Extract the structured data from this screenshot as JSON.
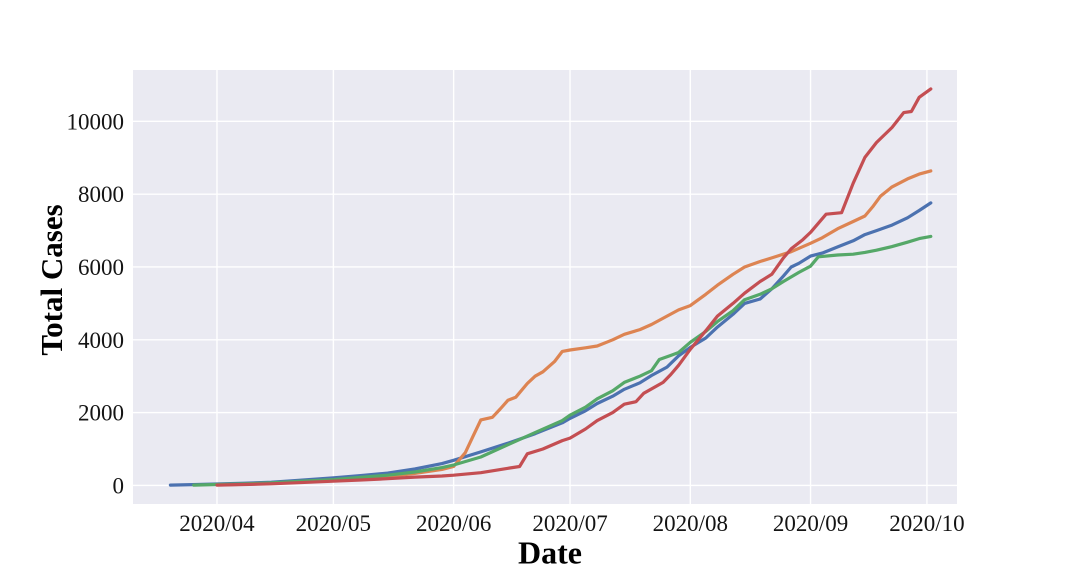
{
  "chart_data": {
    "type": "line",
    "title": "",
    "xlabel": "Date",
    "ylabel": "Total Cases",
    "grid": true,
    "legend": "none",
    "plot_background": "#EAEAF2",
    "grid_color": "#FFFFFF",
    "text_color": "#141414",
    "x_epoch_day0": "2020/03/20",
    "xlim_days": [
      -9.65,
      202.75
    ],
    "ylim": [
      -510,
      11410
    ],
    "x_ticks": [
      {
        "day": 12,
        "label": "2020/04"
      },
      {
        "day": 42,
        "label": "2020/05"
      },
      {
        "day": 73,
        "label": "2020/06"
      },
      {
        "day": 103,
        "label": "2020/07"
      },
      {
        "day": 134,
        "label": "2020/08"
      },
      {
        "day": 165,
        "label": "2020/09"
      },
      {
        "day": 195,
        "label": "2020/10"
      }
    ],
    "y_ticks": [
      {
        "value": 0,
        "label": "0"
      },
      {
        "value": 2000,
        "label": "2000"
      },
      {
        "value": 4000,
        "label": "4000"
      },
      {
        "value": 6000,
        "label": "6000"
      },
      {
        "value": 8000,
        "label": "8000"
      },
      {
        "value": 10000,
        "label": "10000"
      }
    ],
    "series": [
      {
        "name": "blue",
        "color": "#4C72B0",
        "points": [
          [
            0,
            10
          ],
          [
            7,
            25
          ],
          [
            12,
            40
          ],
          [
            19,
            60
          ],
          [
            26,
            90
          ],
          [
            33,
            140
          ],
          [
            42,
            210
          ],
          [
            49,
            270
          ],
          [
            56,
            340
          ],
          [
            63,
            450
          ],
          [
            70,
            600
          ],
          [
            73,
            690
          ],
          [
            80,
            920
          ],
          [
            87,
            1160
          ],
          [
            94,
            1420
          ],
          [
            101,
            1720
          ],
          [
            103,
            1840
          ],
          [
            107,
            2050
          ],
          [
            110,
            2250
          ],
          [
            114,
            2450
          ],
          [
            117,
            2640
          ],
          [
            121,
            2820
          ],
          [
            124,
            3020
          ],
          [
            128,
            3250
          ],
          [
            131,
            3560
          ],
          [
            134,
            3790
          ],
          [
            138,
            4050
          ],
          [
            141,
            4350
          ],
          [
            145,
            4700
          ],
          [
            148,
            5000
          ],
          [
            152,
            5120
          ],
          [
            155,
            5400
          ],
          [
            158,
            5750
          ],
          [
            160,
            6000
          ],
          [
            162,
            6100
          ],
          [
            165,
            6300
          ],
          [
            168,
            6380
          ],
          [
            172,
            6550
          ],
          [
            176,
            6720
          ],
          [
            179,
            6890
          ],
          [
            182,
            7000
          ],
          [
            186,
            7150
          ],
          [
            190,
            7350
          ],
          [
            193,
            7550
          ],
          [
            196,
            7760
          ]
        ]
      },
      {
        "name": "orange",
        "color": "#DD8452",
        "points": [
          [
            12,
            15
          ],
          [
            19,
            30
          ],
          [
            26,
            55
          ],
          [
            33,
            85
          ],
          [
            42,
            130
          ],
          [
            49,
            180
          ],
          [
            56,
            240
          ],
          [
            63,
            330
          ],
          [
            70,
            440
          ],
          [
            73,
            520
          ],
          [
            76,
            900
          ],
          [
            78,
            1350
          ],
          [
            80,
            1800
          ],
          [
            83,
            1870
          ],
          [
            85,
            2100
          ],
          [
            87,
            2340
          ],
          [
            89,
            2420
          ],
          [
            92,
            2800
          ],
          [
            94,
            3000
          ],
          [
            96,
            3120
          ],
          [
            99,
            3400
          ],
          [
            101,
            3680
          ],
          [
            103,
            3720
          ],
          [
            107,
            3780
          ],
          [
            110,
            3830
          ],
          [
            114,
            4000
          ],
          [
            117,
            4150
          ],
          [
            121,
            4280
          ],
          [
            124,
            4420
          ],
          [
            128,
            4650
          ],
          [
            131,
            4820
          ],
          [
            134,
            4940
          ],
          [
            138,
            5250
          ],
          [
            141,
            5500
          ],
          [
            145,
            5800
          ],
          [
            148,
            6000
          ],
          [
            152,
            6150
          ],
          [
            155,
            6250
          ],
          [
            160,
            6420
          ],
          [
            165,
            6650
          ],
          [
            168,
            6800
          ],
          [
            172,
            7050
          ],
          [
            176,
            7250
          ],
          [
            179,
            7400
          ],
          [
            181,
            7650
          ],
          [
            183,
            7940
          ],
          [
            186,
            8200
          ],
          [
            190,
            8420
          ],
          [
            193,
            8550
          ],
          [
            196,
            8640
          ]
        ]
      },
      {
        "name": "green",
        "color": "#55A868",
        "points": [
          [
            6,
            10
          ],
          [
            12,
            25
          ],
          [
            19,
            45
          ],
          [
            26,
            70
          ],
          [
            33,
            110
          ],
          [
            42,
            160
          ],
          [
            49,
            220
          ],
          [
            56,
            280
          ],
          [
            63,
            370
          ],
          [
            70,
            490
          ],
          [
            73,
            560
          ],
          [
            80,
            780
          ],
          [
            87,
            1120
          ],
          [
            94,
            1450
          ],
          [
            101,
            1780
          ],
          [
            103,
            1930
          ],
          [
            107,
            2150
          ],
          [
            110,
            2380
          ],
          [
            114,
            2600
          ],
          [
            117,
            2830
          ],
          [
            121,
            3000
          ],
          [
            124,
            3150
          ],
          [
            126,
            3460
          ],
          [
            129,
            3570
          ],
          [
            131,
            3650
          ],
          [
            134,
            3930
          ],
          [
            138,
            4230
          ],
          [
            141,
            4500
          ],
          [
            145,
            4800
          ],
          [
            148,
            5100
          ],
          [
            152,
            5250
          ],
          [
            155,
            5400
          ],
          [
            158,
            5600
          ],
          [
            162,
            5850
          ],
          [
            165,
            6020
          ],
          [
            167,
            6280
          ],
          [
            172,
            6330
          ],
          [
            176,
            6350
          ],
          [
            179,
            6400
          ],
          [
            182,
            6460
          ],
          [
            186,
            6560
          ],
          [
            190,
            6680
          ],
          [
            193,
            6780
          ],
          [
            196,
            6840
          ]
        ]
      },
      {
        "name": "red",
        "color": "#C44E52",
        "points": [
          [
            12,
            10
          ],
          [
            19,
            25
          ],
          [
            26,
            45
          ],
          [
            33,
            75
          ],
          [
            42,
            115
          ],
          [
            49,
            150
          ],
          [
            56,
            185
          ],
          [
            63,
            230
          ],
          [
            70,
            260
          ],
          [
            73,
            280
          ],
          [
            80,
            350
          ],
          [
            87,
            470
          ],
          [
            90,
            520
          ],
          [
            92,
            870
          ],
          [
            96,
            1000
          ],
          [
            101,
            1230
          ],
          [
            103,
            1300
          ],
          [
            107,
            1550
          ],
          [
            110,
            1780
          ],
          [
            114,
            2000
          ],
          [
            117,
            2230
          ],
          [
            120,
            2300
          ],
          [
            122,
            2530
          ],
          [
            127,
            2830
          ],
          [
            129,
            3050
          ],
          [
            131,
            3300
          ],
          [
            134,
            3740
          ],
          [
            138,
            4250
          ],
          [
            141,
            4650
          ],
          [
            145,
            5000
          ],
          [
            148,
            5280
          ],
          [
            152,
            5600
          ],
          [
            155,
            5800
          ],
          [
            158,
            6250
          ],
          [
            160,
            6500
          ],
          [
            163,
            6750
          ],
          [
            165,
            6950
          ],
          [
            167,
            7200
          ],
          [
            169,
            7450
          ],
          [
            173,
            7490
          ],
          [
            176,
            8300
          ],
          [
            179,
            9010
          ],
          [
            182,
            9420
          ],
          [
            186,
            9830
          ],
          [
            189,
            10240
          ],
          [
            191,
            10270
          ],
          [
            193,
            10660
          ],
          [
            196,
            10890
          ]
        ]
      }
    ]
  }
}
